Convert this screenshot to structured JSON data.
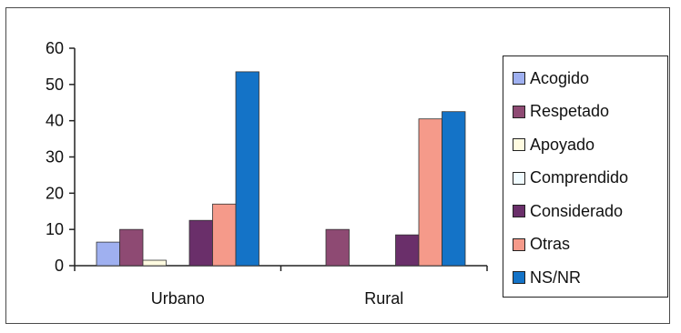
{
  "chart_data": {
    "type": "bar",
    "categories": [
      "Urbano",
      "Rural"
    ],
    "series": [
      {
        "name": "Acogido",
        "values": [
          6.5,
          0
        ],
        "color": "#9fb0f0"
      },
      {
        "name": "Respetado",
        "values": [
          10,
          10
        ],
        "color": "#8e4a73"
      },
      {
        "name": "Apoyado",
        "values": [
          1.5,
          0
        ],
        "color": "#fffbe0"
      },
      {
        "name": "Comprendido",
        "values": [
          0,
          0
        ],
        "color": "#f0fbff"
      },
      {
        "name": "Considerado",
        "values": [
          12.5,
          8.5
        ],
        "color": "#6a2f6a"
      },
      {
        "name": "Otras",
        "values": [
          17,
          40.5
        ],
        "color": "#f59a8a"
      },
      {
        "name": "NS/NR",
        "values": [
          53.5,
          42.5
        ],
        "color": "#1473c7"
      }
    ],
    "title": "",
    "xlabel": "",
    "ylabel": "",
    "ylim": [
      0,
      60
    ],
    "yticks": [
      "0",
      "10",
      "20",
      "30",
      "40",
      "50",
      "60"
    ],
    "grid": false,
    "legend": "right"
  }
}
